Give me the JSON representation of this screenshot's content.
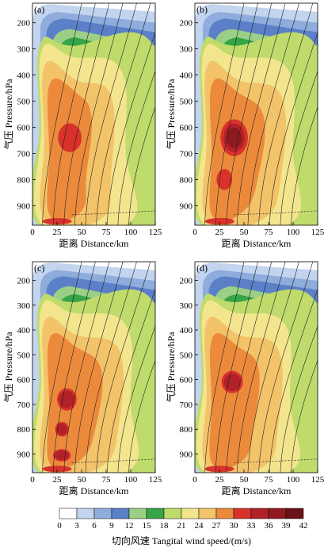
{
  "colors": {
    "levels": [
      "#ffffff",
      "#c2d4ee",
      "#8eacdc",
      "#5b80c8",
      "#9bcf86",
      "#36a547",
      "#bedb6c",
      "#f3e58e",
      "#f3c36a",
      "#ec8a3c",
      "#d8322b",
      "#b22127",
      "#8e1a1f",
      "#6a1216",
      "#4a0c0f"
    ]
  },
  "chart_data": [
    {
      "type": "contour",
      "panel_label": "(a)",
      "xlabel": "距离 Distance/km",
      "ylabel": "气压 Pressure/hPa",
      "xlim": [
        0,
        125
      ],
      "ylim": [
        975,
        125
      ],
      "xticks": [
        0,
        25,
        50,
        75,
        100,
        125
      ],
      "yticks": [
        200,
        300,
        400,
        500,
        600,
        700,
        800,
        900
      ],
      "max_wind": {
        "x_km": 38,
        "p_hpa": 640,
        "value": 31
      }
    },
    {
      "type": "contour",
      "panel_label": "(b)",
      "xlabel": "距离 Distance/km",
      "ylabel": "气压 Pressure/hPa",
      "xlim": [
        0,
        125
      ],
      "ylim": [
        975,
        125
      ],
      "xticks": [
        0,
        25,
        50,
        75,
        100,
        125
      ],
      "yticks": [
        200,
        300,
        400,
        500,
        600,
        700,
        800,
        900
      ],
      "max_wind": {
        "x_km": 40,
        "p_hpa": 640,
        "value": 36
      }
    },
    {
      "type": "contour",
      "panel_label": "(c)",
      "xlabel": "距离 Distance/km",
      "ylabel": "气压 Pressure/hPa",
      "xlim": [
        0,
        125
      ],
      "ylim": [
        975,
        125
      ],
      "xticks": [
        0,
        25,
        50,
        75,
        100,
        125
      ],
      "yticks": [
        200,
        300,
        400,
        500,
        600,
        700,
        800,
        900
      ],
      "max_wind": {
        "x_km": 35,
        "p_hpa": 680,
        "value": 34
      }
    },
    {
      "type": "contour",
      "panel_label": "(d)",
      "xlabel": "距离 Distance/km",
      "ylabel": "气压 Pressure/hPa",
      "xlim": [
        0,
        125
      ],
      "ylim": [
        975,
        125
      ],
      "xticks": [
        0,
        25,
        50,
        75,
        100,
        125
      ],
      "yticks": [
        200,
        300,
        400,
        500,
        600,
        700,
        800,
        900
      ],
      "max_wind": {
        "x_km": 38,
        "p_hpa": 610,
        "value": 35
      }
    }
  ],
  "colorbar": {
    "ticks": [
      0,
      3,
      6,
      9,
      12,
      15,
      18,
      21,
      24,
      27,
      30,
      33,
      36,
      39,
      42
    ],
    "label": "切向风速 Tangital wind speed/(m/s)"
  }
}
